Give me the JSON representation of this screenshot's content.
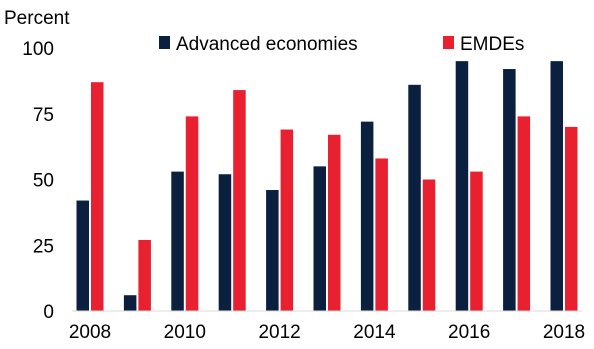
{
  "chart_data": {
    "type": "bar",
    "ylabel": "Percent",
    "ylim": [
      0,
      100
    ],
    "yticks": [
      0,
      25,
      50,
      75,
      100
    ],
    "categories": [
      "2008",
      "2009",
      "2010",
      "2011",
      "2012",
      "2013",
      "2014",
      "2015",
      "2016",
      "2017",
      "2018"
    ],
    "xtick_labels": [
      "2008",
      "",
      "2010",
      "",
      "2012",
      "",
      "2014",
      "",
      "2016",
      "",
      "2018"
    ],
    "series": [
      {
        "name": "Advanced economies",
        "color": "#0b1f3f",
        "values": [
          42,
          6,
          53,
          52,
          46,
          55,
          72,
          86,
          95,
          92,
          95
        ]
      },
      {
        "name": "EMDEs",
        "color": "#e8202f",
        "values": [
          87,
          27,
          74,
          84,
          69,
          67,
          58,
          50,
          53,
          74,
          70
        ]
      }
    ],
    "legend_position": "top",
    "grid": false
  }
}
